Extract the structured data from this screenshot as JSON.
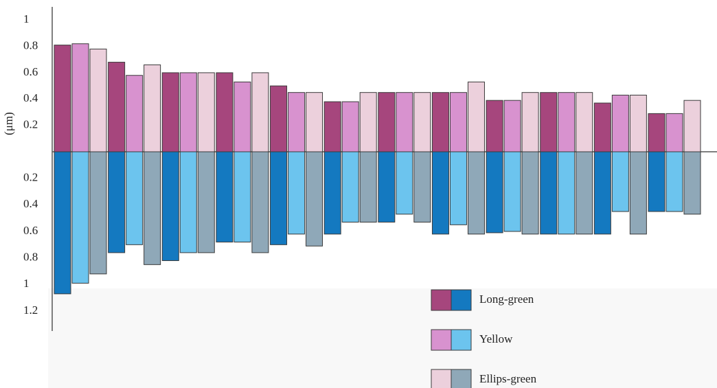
{
  "chart_data": {
    "type": "diverging-bar",
    "y_label": "(μm)",
    "categories": [
      null,
      null,
      null,
      null,
      null,
      null,
      null,
      null,
      null,
      null,
      null,
      null
    ],
    "upper_ylim": [
      0,
      1.1
    ],
    "upper_yticks": [
      0.2,
      0.4,
      0.6,
      0.8,
      1
    ],
    "lower_ylim": [
      0,
      1.35
    ],
    "lower_yticks": [
      0.2,
      0.4,
      0.6,
      0.8,
      1,
      1.2
    ],
    "series": [
      {
        "name": "Long-green",
        "upper_color": "#a6467d",
        "lower_color": "#1479c0",
        "upper_values": [
          0.81,
          0.68,
          0.6,
          0.6,
          0.5,
          0.38,
          0.45,
          0.45,
          0.39,
          0.45,
          0.37,
          0.29
        ],
        "lower_values": [
          1.07,
          0.76,
          0.82,
          0.68,
          0.7,
          0.62,
          0.53,
          0.62,
          0.61,
          0.62,
          0.62,
          0.45
        ]
      },
      {
        "name": "Yellow",
        "upper_color": "#d892cf",
        "lower_color": "#6cc4ee",
        "upper_values": [
          0.82,
          0.58,
          0.6,
          0.53,
          0.45,
          0.38,
          0.45,
          0.45,
          0.39,
          0.45,
          0.43,
          0.29
        ],
        "lower_values": [
          0.99,
          0.7,
          0.76,
          0.68,
          0.62,
          0.53,
          0.47,
          0.55,
          0.6,
          0.62,
          0.45,
          0.45
        ]
      },
      {
        "name": "Ellips-green",
        "upper_color": "#ecd0dc",
        "lower_color": "#8fa8b8",
        "upper_values": [
          0.78,
          0.66,
          0.6,
          0.6,
          0.45,
          0.45,
          0.45,
          0.53,
          0.45,
          0.45,
          0.43,
          0.39
        ],
        "lower_values": [
          0.92,
          0.85,
          0.76,
          0.76,
          0.71,
          0.53,
          0.53,
          0.62,
          0.62,
          0.62,
          0.62,
          0.47
        ]
      }
    ]
  }
}
